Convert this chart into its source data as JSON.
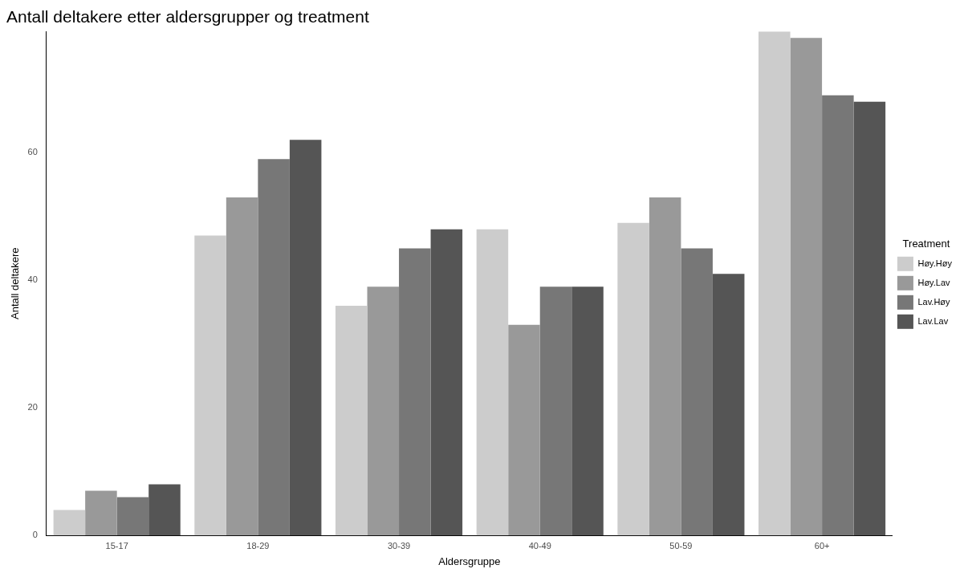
{
  "chart_data": {
    "type": "bar",
    "title": "Antall deltakere etter aldersgrupper og treatment",
    "xlabel": "Aldersgruppe",
    "ylabel": "Antall deltakere",
    "legend_title": "Treatment",
    "legend": "right",
    "grid": false,
    "categories": [
      "15-17",
      "18-29",
      "30-39",
      "40-49",
      "50-59",
      "60+"
    ],
    "ylim": [
      0,
      79
    ],
    "yticks": [
      0,
      20,
      40,
      60
    ],
    "series": [
      {
        "name": "Høy.Høy",
        "color": "#cccccc",
        "values": [
          4,
          47,
          36,
          48,
          49,
          79
        ]
      },
      {
        "name": "Høy.Lav",
        "color": "#999999",
        "values": [
          7,
          53,
          39,
          33,
          53,
          78
        ]
      },
      {
        "name": "Lav.Høy",
        "color": "#777777",
        "values": [
          6,
          59,
          45,
          39,
          45,
          69
        ]
      },
      {
        "name": "Lav.Lav",
        "color": "#555555",
        "values": [
          8,
          62,
          48,
          39,
          41,
          68
        ]
      }
    ]
  }
}
